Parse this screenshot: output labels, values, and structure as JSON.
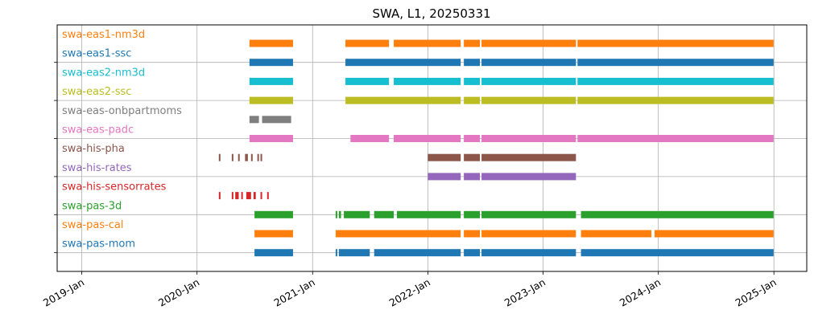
{
  "chart_data": {
    "type": "timeline",
    "title": "SWA, L1, 20250331",
    "xlabel": "",
    "ylabel": "",
    "xlim": [
      "2018-10-15",
      "2025-04-15"
    ],
    "grid": true,
    "x_ticks": [
      "2019-01-01",
      "2020-01-01",
      "2021-01-01",
      "2022-01-01",
      "2023-01-01",
      "2024-01-01",
      "2025-01-01"
    ],
    "x_tick_labels": [
      "2019-Jan",
      "2020-Jan",
      "2021-Jan",
      "2022-Jan",
      "2023-Jan",
      "2024-Jan",
      "2025-Jan"
    ],
    "series": [
      {
        "name": "swa-eas1-nm3d",
        "color": "#ff7f0e",
        "segments": [
          [
            "2020-06-15",
            "2020-10-31"
          ],
          [
            "2021-04-15",
            "2021-08-31"
          ],
          [
            "2021-09-15",
            "2022-04-15"
          ],
          [
            "2022-04-25",
            "2022-06-15"
          ],
          [
            "2022-06-20",
            "2023-04-15"
          ],
          [
            "2023-04-20",
            "2024-12-31"
          ]
        ]
      },
      {
        "name": "swa-eas1-ssc",
        "color": "#1f77b4",
        "segments": [
          [
            "2020-06-15",
            "2020-10-31"
          ],
          [
            "2021-04-15",
            "2022-04-15"
          ],
          [
            "2022-04-25",
            "2022-06-15"
          ],
          [
            "2022-06-20",
            "2023-04-15"
          ],
          [
            "2023-04-20",
            "2024-12-31"
          ]
        ]
      },
      {
        "name": "swa-eas2-nm3d",
        "color": "#17becf",
        "segments": [
          [
            "2020-06-15",
            "2020-10-31"
          ],
          [
            "2021-04-15",
            "2021-08-31"
          ],
          [
            "2021-09-15",
            "2022-04-15"
          ],
          [
            "2022-04-25",
            "2022-06-15"
          ],
          [
            "2022-06-20",
            "2023-04-15"
          ],
          [
            "2023-04-20",
            "2024-12-31"
          ]
        ]
      },
      {
        "name": "swa-eas2-ssc",
        "color": "#bcbd22",
        "segments": [
          [
            "2020-06-15",
            "2020-10-31"
          ],
          [
            "2021-04-15",
            "2022-04-15"
          ],
          [
            "2022-04-25",
            "2022-06-15"
          ],
          [
            "2022-06-20",
            "2023-04-15"
          ],
          [
            "2023-04-20",
            "2024-12-31"
          ]
        ]
      },
      {
        "name": "swa-eas-onbpartmoms",
        "color": "#7f7f7f",
        "segments": [
          [
            "2020-06-15",
            "2020-07-15"
          ],
          [
            "2020-07-25",
            "2020-10-25"
          ]
        ]
      },
      {
        "name": "swa-eas-padc",
        "color": "#e377c2",
        "segments": [
          [
            "2020-06-15",
            "2020-10-31"
          ],
          [
            "2021-05-01",
            "2021-08-31"
          ],
          [
            "2021-09-15",
            "2022-04-15"
          ],
          [
            "2022-04-25",
            "2022-06-15"
          ],
          [
            "2022-06-20",
            "2023-04-15"
          ],
          [
            "2023-04-20",
            "2024-12-31"
          ]
        ]
      },
      {
        "name": "swa-his-pha",
        "color": "#8c564b",
        "segments": [
          [
            "2020-03-10",
            "2020-03-15"
          ],
          [
            "2020-04-20",
            "2020-04-25"
          ],
          [
            "2020-05-10",
            "2020-05-15"
          ],
          [
            "2020-06-01",
            "2020-06-10"
          ],
          [
            "2020-06-20",
            "2020-06-25"
          ],
          [
            "2020-07-10",
            "2020-07-15"
          ],
          [
            "2020-07-20",
            "2020-07-25"
          ],
          [
            "2022-01-01",
            "2022-04-15"
          ],
          [
            "2022-04-25",
            "2022-06-15"
          ],
          [
            "2022-06-20",
            "2023-04-15"
          ]
        ]
      },
      {
        "name": "swa-his-rates",
        "color": "#9467bd",
        "segments": [
          [
            "2022-01-01",
            "2022-04-15"
          ],
          [
            "2022-04-25",
            "2022-06-15"
          ],
          [
            "2022-06-20",
            "2023-04-15"
          ]
        ]
      },
      {
        "name": "swa-his-sensorrates",
        "color": "#d62728",
        "segments": [
          [
            "2020-03-10",
            "2020-03-15"
          ],
          [
            "2020-04-20",
            "2020-04-25"
          ],
          [
            "2020-05-01",
            "2020-05-12"
          ],
          [
            "2020-05-20",
            "2020-05-25"
          ],
          [
            "2020-06-05",
            "2020-06-20"
          ],
          [
            "2020-06-28",
            "2020-07-05"
          ],
          [
            "2020-07-20",
            "2020-07-25"
          ],
          [
            "2020-08-10",
            "2020-08-15"
          ]
        ]
      },
      {
        "name": "swa-pas-3d",
        "color": "#2ca02c",
        "segments": [
          [
            "2020-07-01",
            "2020-10-31"
          ],
          [
            "2021-03-15",
            "2021-03-20"
          ],
          [
            "2021-03-25",
            "2021-04-01"
          ],
          [
            "2021-04-10",
            "2021-07-01"
          ],
          [
            "2021-07-15",
            "2021-09-15"
          ],
          [
            "2021-09-25",
            "2022-04-15"
          ],
          [
            "2022-04-25",
            "2022-06-15"
          ],
          [
            "2022-06-20",
            "2023-04-15"
          ],
          [
            "2023-05-01",
            "2024-12-31"
          ]
        ]
      },
      {
        "name": "swa-pas-cal",
        "color": "#ff7f0e",
        "segments": [
          [
            "2020-07-01",
            "2020-10-31"
          ],
          [
            "2021-03-15",
            "2022-04-15"
          ],
          [
            "2022-04-25",
            "2022-06-15"
          ],
          [
            "2022-06-20",
            "2023-04-15"
          ],
          [
            "2023-05-01",
            "2023-12-10"
          ],
          [
            "2023-12-20",
            "2024-12-31"
          ]
        ]
      },
      {
        "name": "swa-pas-mom",
        "color": "#1f77b4",
        "segments": [
          [
            "2020-07-01",
            "2020-10-31"
          ],
          [
            "2021-03-15",
            "2021-03-20"
          ],
          [
            "2021-03-25",
            "2021-07-01"
          ],
          [
            "2021-07-15",
            "2022-04-15"
          ],
          [
            "2022-04-25",
            "2022-06-15"
          ],
          [
            "2022-06-20",
            "2023-04-15"
          ],
          [
            "2023-05-01",
            "2024-12-31"
          ]
        ]
      }
    ]
  }
}
